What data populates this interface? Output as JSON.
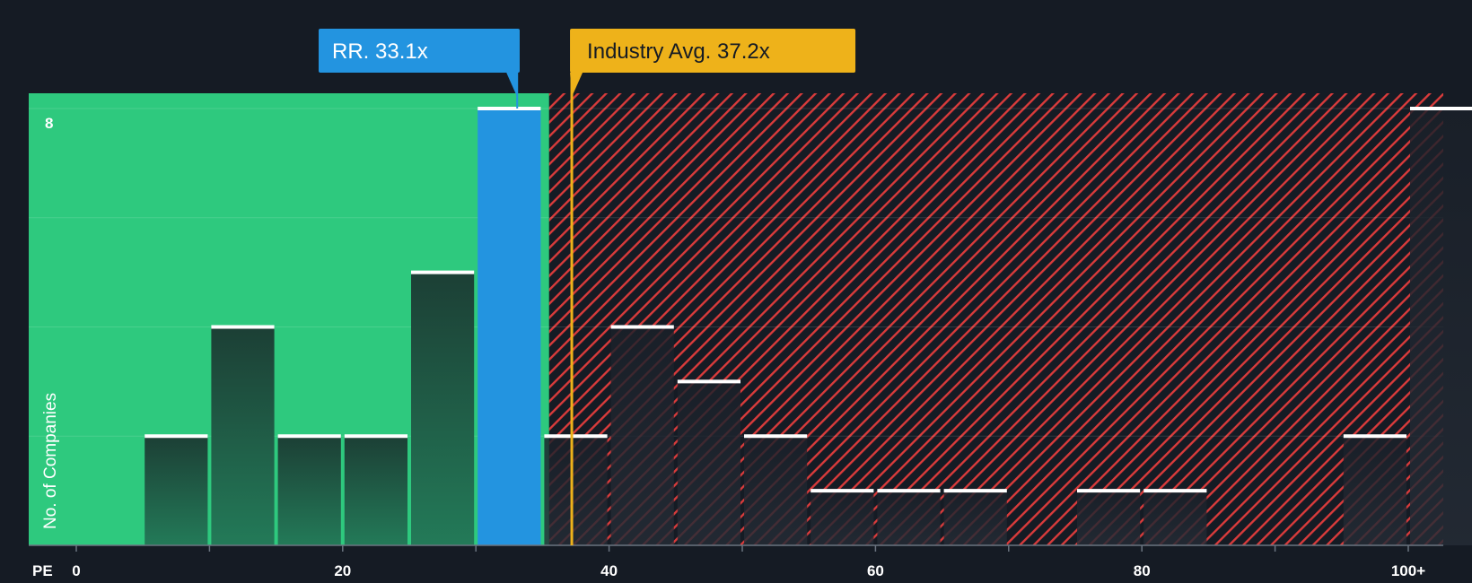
{
  "chart_data": {
    "type": "bar",
    "title": "",
    "xlabel": "PE",
    "ylabel": "No. of Companies",
    "xlim": [
      0,
      102.5
    ],
    "ylim": [
      0,
      8
    ],
    "x_ticks": [
      {
        "value": 0,
        "label": "0"
      },
      {
        "value": 20,
        "label": "20"
      },
      {
        "value": 40,
        "label": "40"
      },
      {
        "value": 60,
        "label": "60"
      },
      {
        "value": 80,
        "label": "80"
      },
      {
        "value": 100,
        "label": "100+"
      }
    ],
    "y_ticks": [
      {
        "value": 8,
        "label": "8"
      }
    ],
    "bin_width": 5,
    "bins": [
      {
        "start": 5,
        "count": 2
      },
      {
        "start": 10,
        "count": 4
      },
      {
        "start": 15,
        "count": 2
      },
      {
        "start": 20,
        "count": 2
      },
      {
        "start": 25,
        "count": 5
      },
      {
        "start": 30,
        "count": 8,
        "highlight": true
      },
      {
        "start": 35,
        "count": 2
      },
      {
        "start": 40,
        "count": 4
      },
      {
        "start": 45,
        "count": 3
      },
      {
        "start": 50,
        "count": 2
      },
      {
        "start": 55,
        "count": 1
      },
      {
        "start": 60,
        "count": 1
      },
      {
        "start": 65,
        "count": 1
      },
      {
        "start": 75,
        "count": 1
      },
      {
        "start": 80,
        "count": 1
      },
      {
        "start": 95,
        "count": 2
      },
      {
        "start": 100,
        "count": 8
      }
    ],
    "undervalued_zone_end": 35.5,
    "company": {
      "label": "RR. 33.1x",
      "value": 33.1
    },
    "industry_avg": {
      "label": "Industry Avg. 37.2x",
      "value": 37.2
    },
    "colors": {
      "background": "#151b24",
      "undervalued_zone": "#2ec97e",
      "overvalued_hatch": "#d93b3b",
      "bar_in_green": "#1f4a3c",
      "bar_in_red": "#1e2530",
      "highlight_bar": "#2394e0",
      "company_callout": "#2394e0",
      "industry_callout": "#eeb21a",
      "bar_cap": "#ffffff"
    }
  }
}
